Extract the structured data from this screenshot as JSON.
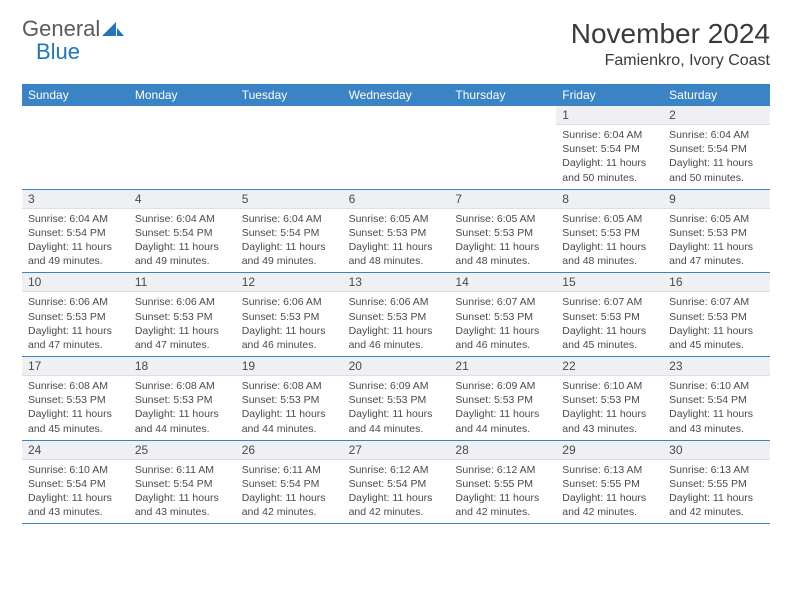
{
  "branding": {
    "word1": "General",
    "word2": "Blue",
    "word1_color": "#5a5a5a",
    "word2_color": "#2176bd",
    "icon_color": "#2176bd"
  },
  "title": {
    "month": "November 2024",
    "location": "Famienkro, Ivory Coast",
    "month_fontsize": 28,
    "location_fontsize": 16,
    "text_color": "#3a3a3a"
  },
  "calendar": {
    "header_bg": "#3a83c4",
    "header_text_color": "#ffffff",
    "daynum_bg": "#eef0f3",
    "border_color": "#3a83c4",
    "body_text_color": "#4a4a4a",
    "weekdays": [
      "Sunday",
      "Monday",
      "Tuesday",
      "Wednesday",
      "Thursday",
      "Friday",
      "Saturday"
    ],
    "weeks": [
      [
        {
          "day": "",
          "sunrise": "",
          "sunset": "",
          "daylight": ""
        },
        {
          "day": "",
          "sunrise": "",
          "sunset": "",
          "daylight": ""
        },
        {
          "day": "",
          "sunrise": "",
          "sunset": "",
          "daylight": ""
        },
        {
          "day": "",
          "sunrise": "",
          "sunset": "",
          "daylight": ""
        },
        {
          "day": "",
          "sunrise": "",
          "sunset": "",
          "daylight": ""
        },
        {
          "day": "1",
          "sunrise": "Sunrise: 6:04 AM",
          "sunset": "Sunset: 5:54 PM",
          "daylight": "Daylight: 11 hours and 50 minutes."
        },
        {
          "day": "2",
          "sunrise": "Sunrise: 6:04 AM",
          "sunset": "Sunset: 5:54 PM",
          "daylight": "Daylight: 11 hours and 50 minutes."
        }
      ],
      [
        {
          "day": "3",
          "sunrise": "Sunrise: 6:04 AM",
          "sunset": "Sunset: 5:54 PM",
          "daylight": "Daylight: 11 hours and 49 minutes."
        },
        {
          "day": "4",
          "sunrise": "Sunrise: 6:04 AM",
          "sunset": "Sunset: 5:54 PM",
          "daylight": "Daylight: 11 hours and 49 minutes."
        },
        {
          "day": "5",
          "sunrise": "Sunrise: 6:04 AM",
          "sunset": "Sunset: 5:54 PM",
          "daylight": "Daylight: 11 hours and 49 minutes."
        },
        {
          "day": "6",
          "sunrise": "Sunrise: 6:05 AM",
          "sunset": "Sunset: 5:53 PM",
          "daylight": "Daylight: 11 hours and 48 minutes."
        },
        {
          "day": "7",
          "sunrise": "Sunrise: 6:05 AM",
          "sunset": "Sunset: 5:53 PM",
          "daylight": "Daylight: 11 hours and 48 minutes."
        },
        {
          "day": "8",
          "sunrise": "Sunrise: 6:05 AM",
          "sunset": "Sunset: 5:53 PM",
          "daylight": "Daylight: 11 hours and 48 minutes."
        },
        {
          "day": "9",
          "sunrise": "Sunrise: 6:05 AM",
          "sunset": "Sunset: 5:53 PM",
          "daylight": "Daylight: 11 hours and 47 minutes."
        }
      ],
      [
        {
          "day": "10",
          "sunrise": "Sunrise: 6:06 AM",
          "sunset": "Sunset: 5:53 PM",
          "daylight": "Daylight: 11 hours and 47 minutes."
        },
        {
          "day": "11",
          "sunrise": "Sunrise: 6:06 AM",
          "sunset": "Sunset: 5:53 PM",
          "daylight": "Daylight: 11 hours and 47 minutes."
        },
        {
          "day": "12",
          "sunrise": "Sunrise: 6:06 AM",
          "sunset": "Sunset: 5:53 PM",
          "daylight": "Daylight: 11 hours and 46 minutes."
        },
        {
          "day": "13",
          "sunrise": "Sunrise: 6:06 AM",
          "sunset": "Sunset: 5:53 PM",
          "daylight": "Daylight: 11 hours and 46 minutes."
        },
        {
          "day": "14",
          "sunrise": "Sunrise: 6:07 AM",
          "sunset": "Sunset: 5:53 PM",
          "daylight": "Daylight: 11 hours and 46 minutes."
        },
        {
          "day": "15",
          "sunrise": "Sunrise: 6:07 AM",
          "sunset": "Sunset: 5:53 PM",
          "daylight": "Daylight: 11 hours and 45 minutes."
        },
        {
          "day": "16",
          "sunrise": "Sunrise: 6:07 AM",
          "sunset": "Sunset: 5:53 PM",
          "daylight": "Daylight: 11 hours and 45 minutes."
        }
      ],
      [
        {
          "day": "17",
          "sunrise": "Sunrise: 6:08 AM",
          "sunset": "Sunset: 5:53 PM",
          "daylight": "Daylight: 11 hours and 45 minutes."
        },
        {
          "day": "18",
          "sunrise": "Sunrise: 6:08 AM",
          "sunset": "Sunset: 5:53 PM",
          "daylight": "Daylight: 11 hours and 44 minutes."
        },
        {
          "day": "19",
          "sunrise": "Sunrise: 6:08 AM",
          "sunset": "Sunset: 5:53 PM",
          "daylight": "Daylight: 11 hours and 44 minutes."
        },
        {
          "day": "20",
          "sunrise": "Sunrise: 6:09 AM",
          "sunset": "Sunset: 5:53 PM",
          "daylight": "Daylight: 11 hours and 44 minutes."
        },
        {
          "day": "21",
          "sunrise": "Sunrise: 6:09 AM",
          "sunset": "Sunset: 5:53 PM",
          "daylight": "Daylight: 11 hours and 44 minutes."
        },
        {
          "day": "22",
          "sunrise": "Sunrise: 6:10 AM",
          "sunset": "Sunset: 5:53 PM",
          "daylight": "Daylight: 11 hours and 43 minutes."
        },
        {
          "day": "23",
          "sunrise": "Sunrise: 6:10 AM",
          "sunset": "Sunset: 5:54 PM",
          "daylight": "Daylight: 11 hours and 43 minutes."
        }
      ],
      [
        {
          "day": "24",
          "sunrise": "Sunrise: 6:10 AM",
          "sunset": "Sunset: 5:54 PM",
          "daylight": "Daylight: 11 hours and 43 minutes."
        },
        {
          "day": "25",
          "sunrise": "Sunrise: 6:11 AM",
          "sunset": "Sunset: 5:54 PM",
          "daylight": "Daylight: 11 hours and 43 minutes."
        },
        {
          "day": "26",
          "sunrise": "Sunrise: 6:11 AM",
          "sunset": "Sunset: 5:54 PM",
          "daylight": "Daylight: 11 hours and 42 minutes."
        },
        {
          "day": "27",
          "sunrise": "Sunrise: 6:12 AM",
          "sunset": "Sunset: 5:54 PM",
          "daylight": "Daylight: 11 hours and 42 minutes."
        },
        {
          "day": "28",
          "sunrise": "Sunrise: 6:12 AM",
          "sunset": "Sunset: 5:55 PM",
          "daylight": "Daylight: 11 hours and 42 minutes."
        },
        {
          "day": "29",
          "sunrise": "Sunrise: 6:13 AM",
          "sunset": "Sunset: 5:55 PM",
          "daylight": "Daylight: 11 hours and 42 minutes."
        },
        {
          "day": "30",
          "sunrise": "Sunrise: 6:13 AM",
          "sunset": "Sunset: 5:55 PM",
          "daylight": "Daylight: 11 hours and 42 minutes."
        }
      ]
    ]
  }
}
